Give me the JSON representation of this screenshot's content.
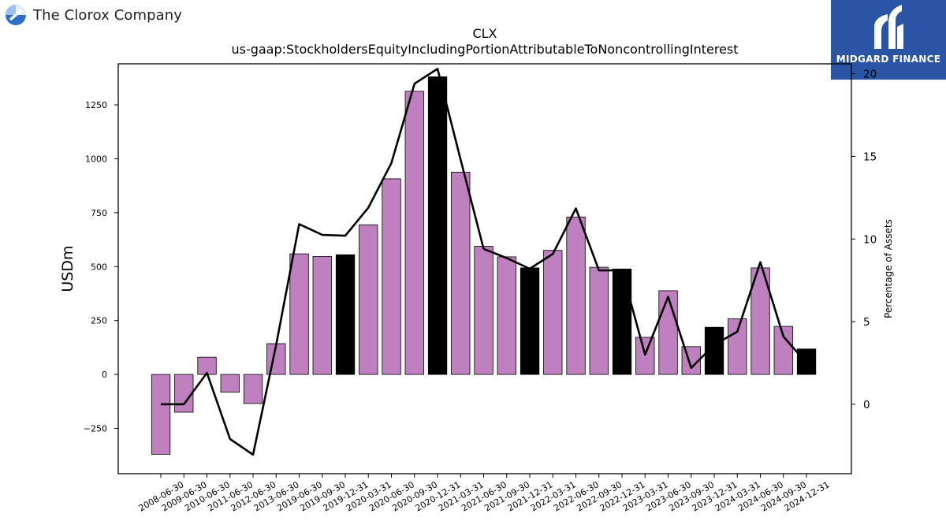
{
  "header": {
    "company_name": "The Clorox Company",
    "ticker": "CLX",
    "concept": "us-gaap:StockholdersEquityIncludingPortionAttributableToNoncontrollingInterest"
  },
  "logo": {
    "brand": "MIDGARD FINANCE",
    "color": "#2a55a4"
  },
  "colors": {
    "bar_default": "#bf80bf",
    "bar_highlight": "#000000",
    "line": "#000000"
  },
  "chart_data": {
    "type": "bar",
    "title": "CLX",
    "subtitle": "us-gaap:StockholdersEquityIncludingPortionAttributableToNoncontrollingInterest",
    "ylabel": "USDm",
    "y2label": "Percentage of Assets",
    "ylim": [
      -460,
      1440
    ],
    "y2lim": [
      -4.2,
      20.6
    ],
    "yticks": [
      -250,
      0,
      250,
      500,
      750,
      1000,
      1250
    ],
    "y2ticks": [
      0,
      5,
      10,
      15,
      20
    ],
    "grid": false,
    "categories": [
      "2008-06-30",
      "2009-06-30",
      "2010-06-30",
      "2011-06-30",
      "2012-06-30",
      "2013-06-30",
      "2019-06-30",
      "2019-09-30",
      "2019-12-31",
      "2020-03-31",
      "2020-06-30",
      "2020-09-30",
      "2020-12-31",
      "2021-03-31",
      "2021-06-30",
      "2021-09-30",
      "2021-12-31",
      "2022-03-31",
      "2022-06-30",
      "2022-09-30",
      "2022-12-31",
      "2023-03-31",
      "2023-06-30",
      "2023-09-30",
      "2023-12-31",
      "2024-03-31",
      "2024-06-30",
      "2024-09-30",
      "2024-12-31"
    ],
    "series": [
      {
        "kind": "bar",
        "axis": "left",
        "values": [
          -370,
          -175,
          80,
          -82,
          -135,
          143,
          559,
          547,
          555,
          694,
          907,
          1313,
          1380,
          938,
          594,
          545,
          494,
          575,
          730,
          497,
          489,
          172,
          388,
          129,
          219,
          258,
          494,
          223,
          118
        ],
        "highlight": [
          false,
          false,
          false,
          false,
          false,
          false,
          false,
          false,
          true,
          false,
          false,
          false,
          true,
          false,
          false,
          false,
          true,
          false,
          false,
          false,
          true,
          false,
          false,
          false,
          true,
          false,
          false,
          false,
          true
        ]
      },
      {
        "kind": "line",
        "axis": "right",
        "values": [
          0.0,
          0.0,
          1.9,
          -2.1,
          -3.05,
          3.6,
          10.9,
          10.25,
          10.2,
          11.9,
          14.6,
          19.4,
          20.3,
          14.8,
          9.4,
          8.85,
          8.2,
          9.1,
          11.85,
          8.1,
          8.1,
          3.0,
          6.5,
          2.2,
          3.6,
          4.4,
          8.6,
          4.1,
          2.5
        ]
      }
    ]
  }
}
